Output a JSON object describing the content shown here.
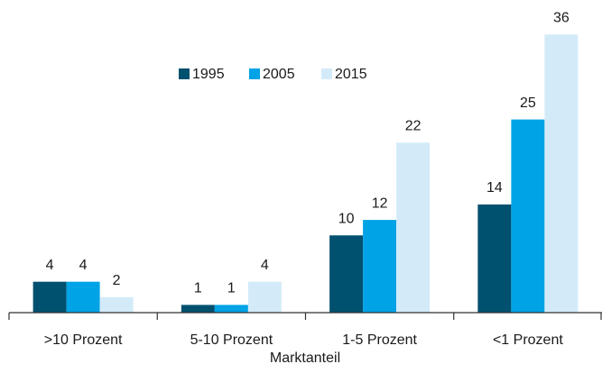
{
  "chart_data": {
    "type": "bar",
    "x_label": "Marktanteil",
    "categories": [
      ">10 Prozent",
      "5-10 Prozent",
      "1-5 Prozent",
      "<1 Prozent"
    ],
    "series": [
      {
        "name": "1995",
        "color": "#00506f",
        "values": [
          4,
          1,
          10,
          14
        ]
      },
      {
        "name": "2005",
        "color": "#00a3e6",
        "values": [
          4,
          1,
          12,
          25
        ]
      },
      {
        "name": "2015",
        "color": "#d3ebf9",
        "values": [
          2,
          4,
          22,
          36
        ]
      }
    ],
    "ylim": [
      0,
      40
    ],
    "legend": "top"
  }
}
